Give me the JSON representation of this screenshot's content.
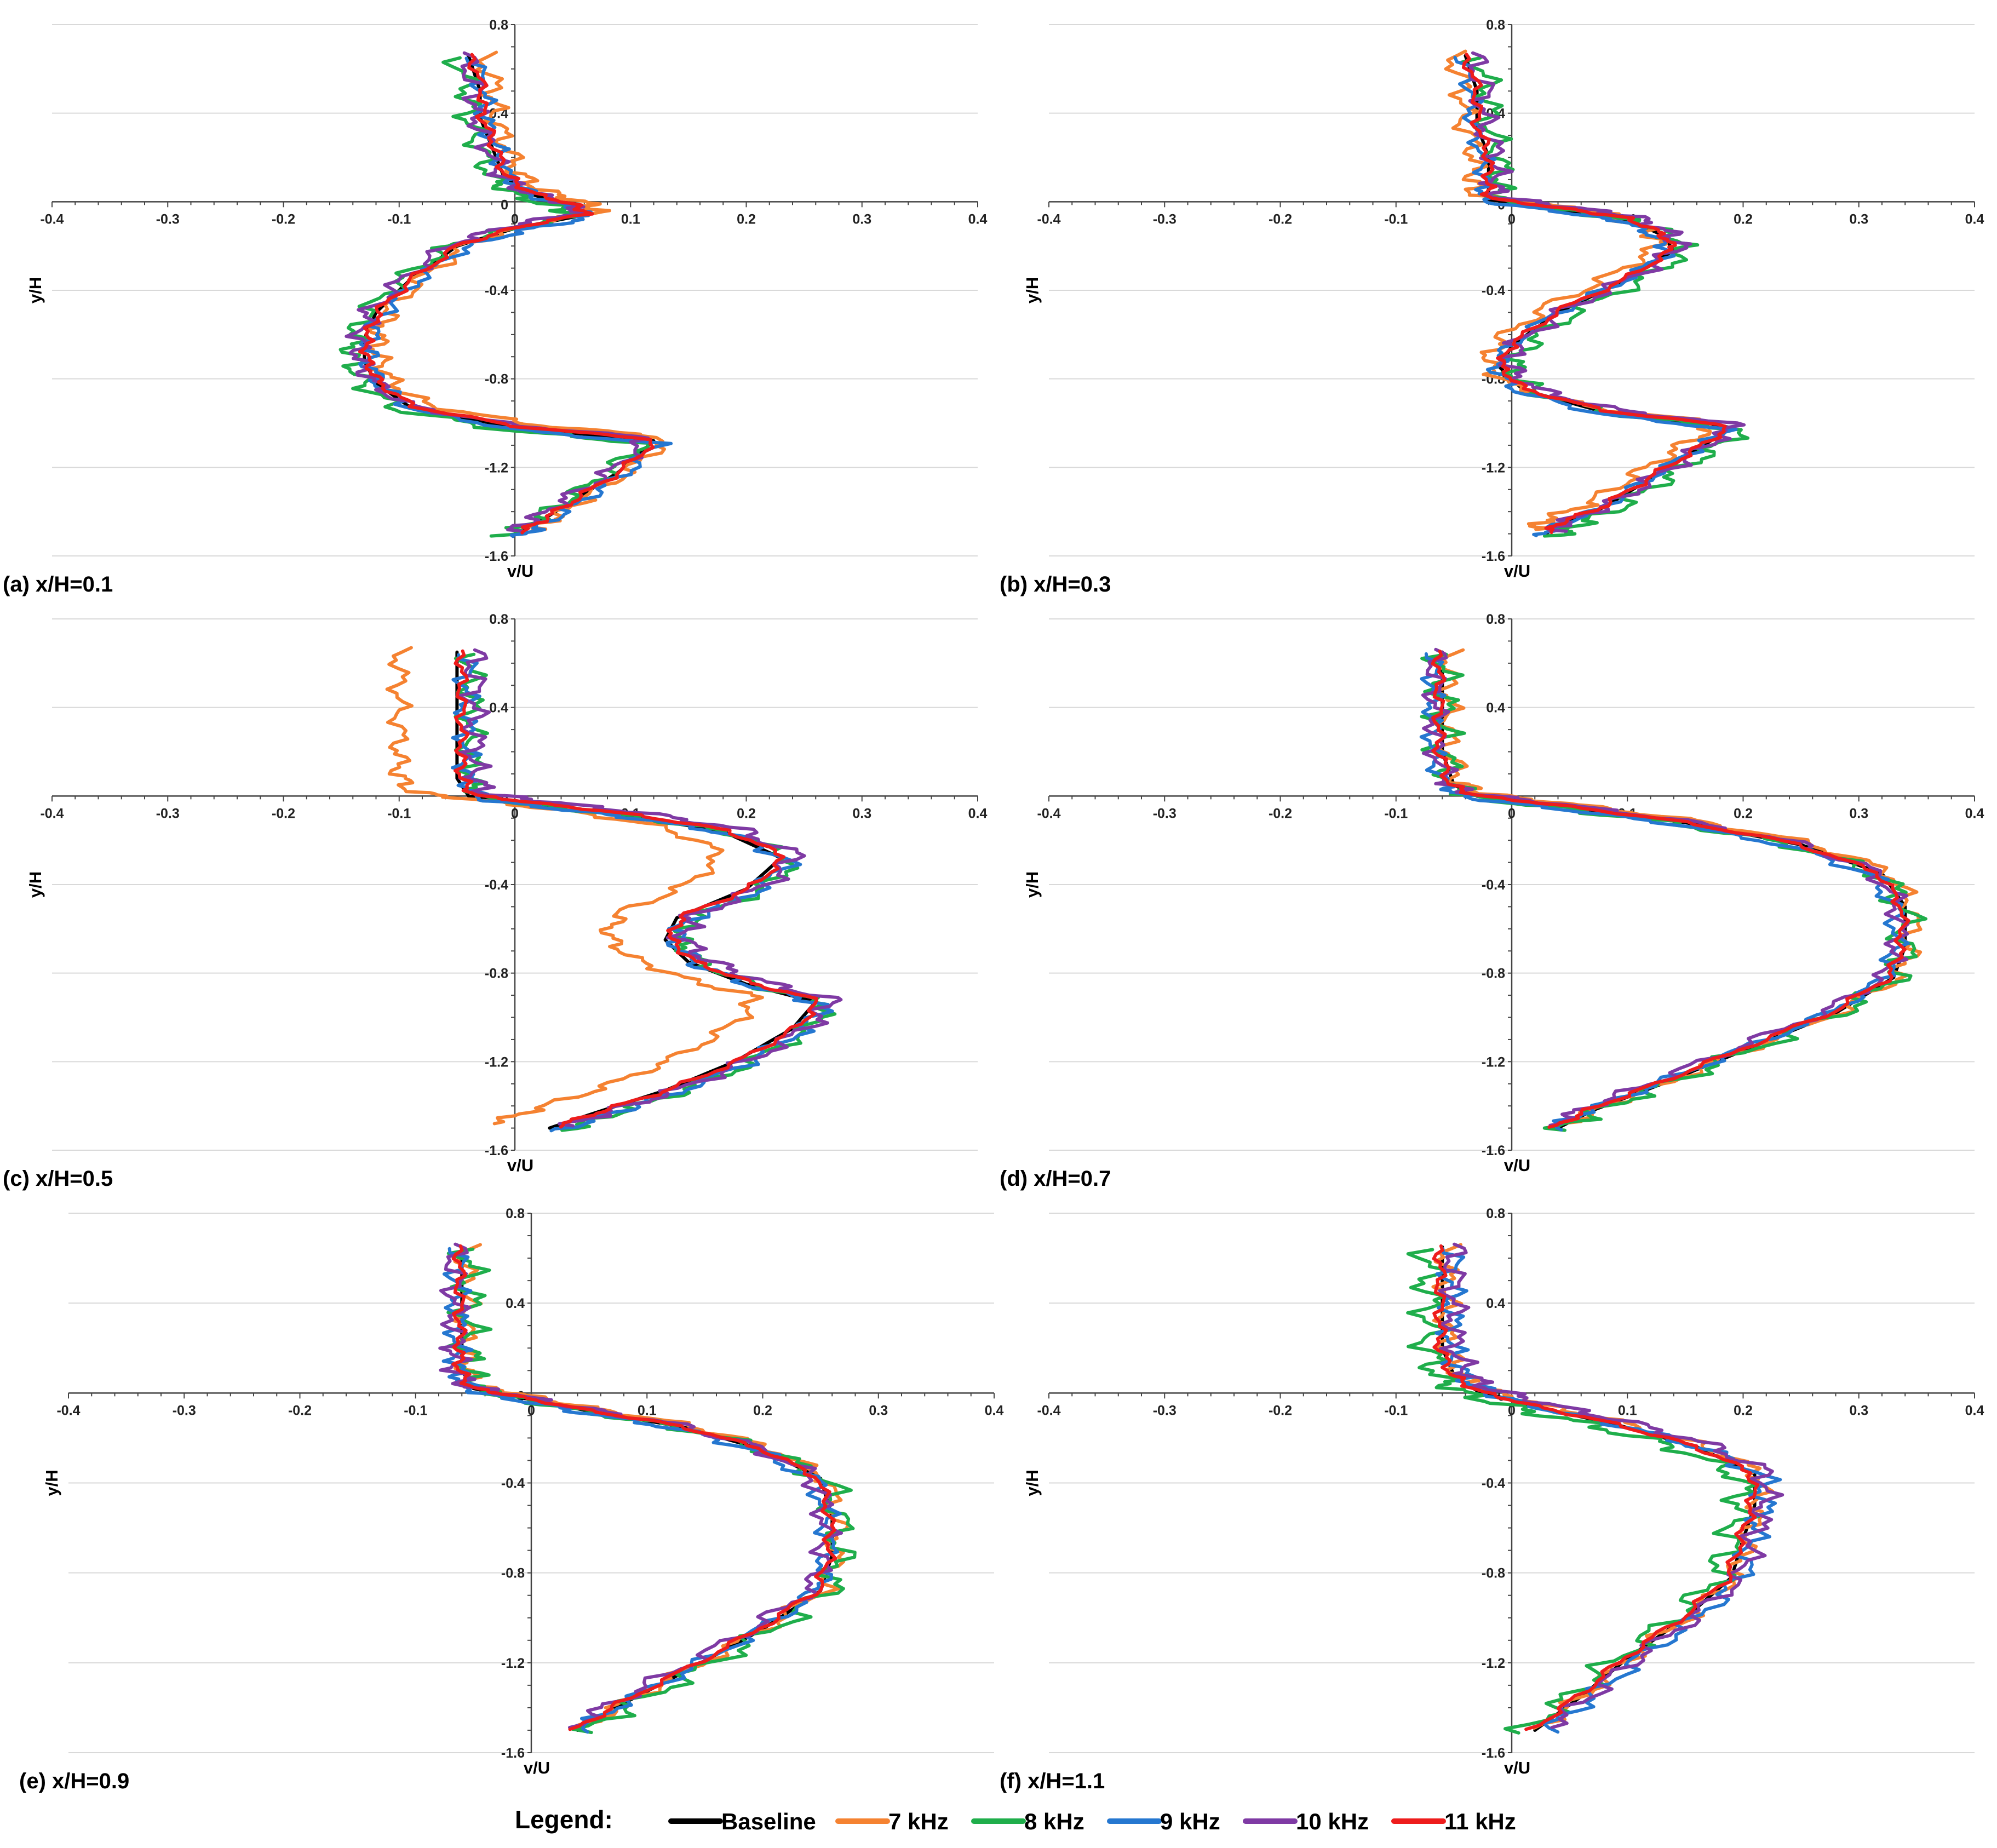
{
  "legend": {
    "title": "Legend:",
    "entries": [
      {
        "label": "Baseline",
        "color": "#000000"
      },
      {
        "label": "7 kHz",
        "color": "#f58231"
      },
      {
        "label": "8 kHz",
        "color": "#1fae4b"
      },
      {
        "label": "9 kHz",
        "color": "#2577d0"
      },
      {
        "label": "10 kHz",
        "color": "#7f3aa4"
      },
      {
        "label": "11 kHz",
        "color": "#ee1c1c"
      }
    ]
  },
  "chart_data": [
    {
      "panel_label": "(a) x/H=0.1",
      "type": "line",
      "xlabel": "v/U",
      "ylabel": "y/H",
      "xlim": [
        -0.4,
        0.4
      ],
      "ylim": [
        -1.6,
        0.8
      ],
      "xticks": [
        "-0.4",
        "-0.3",
        "-0.2",
        "-0.1",
        "0",
        "0.1",
        "0.2",
        "0.3",
        "0.4"
      ],
      "yticks": [
        "0.8",
        "0.4",
        "0",
        "-0.4",
        "-0.8",
        "-1.2",
        "-1.6"
      ],
      "grid": true,
      "profile": [
        [
          -0.04,
          0.66
        ],
        [
          -0.03,
          0.5
        ],
        [
          -0.03,
          0.38
        ],
        [
          -0.02,
          0.25
        ],
        [
          -0.01,
          0.12
        ],
        [
          0.01,
          0.04
        ],
        [
          0.05,
          -0.02
        ],
        [
          0.06,
          -0.06
        ],
        [
          0.0,
          -0.12
        ],
        [
          -0.05,
          -0.2
        ],
        [
          -0.09,
          -0.35
        ],
        [
          -0.12,
          -0.5
        ],
        [
          -0.13,
          -0.62
        ],
        [
          -0.13,
          -0.72
        ],
        [
          -0.12,
          -0.82
        ],
        [
          -0.09,
          -0.93
        ],
        [
          0.0,
          -1.02
        ],
        [
          0.12,
          -1.08
        ],
        [
          0.09,
          -1.22
        ],
        [
          0.05,
          -1.35
        ],
        [
          0.02,
          -1.45
        ],
        [
          0.0,
          -1.5
        ]
      ],
      "series": [
        {
          "name": "Baseline",
          "dx": 0.0,
          "dy": 0.0,
          "amp": 0.0
        },
        {
          "name": "7 kHz",
          "dx": 0.012,
          "dy": 0.015,
          "amp": 0.008
        },
        {
          "name": "8 kHz",
          "dx": -0.01,
          "dy": -0.01,
          "amp": 0.009
        },
        {
          "name": "9 kHz",
          "dx": 0.004,
          "dy": -0.012,
          "amp": 0.007
        },
        {
          "name": "10 kHz",
          "dx": -0.004,
          "dy": 0.012,
          "amp": 0.008
        },
        {
          "name": "11 kHz",
          "dx": 0.002,
          "dy": 0.005,
          "amp": 0.004
        }
      ]
    },
    {
      "panel_label": "(b) x/H=0.3",
      "type": "line",
      "xlabel": "v/U",
      "ylabel": "y/H",
      "xlim": [
        -0.4,
        0.4
      ],
      "ylim": [
        -1.6,
        0.8
      ],
      "xticks": [
        "-0.4",
        "-0.3",
        "-0.2",
        "-0.1",
        "0",
        "0.1",
        "0.2",
        "0.3",
        "0.4"
      ],
      "yticks": [
        "0.8",
        "0.4",
        "0",
        "-0.4",
        "-0.8",
        "-1.2",
        "-1.6"
      ],
      "grid": true,
      "profile": [
        [
          -0.04,
          0.66
        ],
        [
          -0.03,
          0.5
        ],
        [
          -0.03,
          0.35
        ],
        [
          -0.02,
          0.2
        ],
        [
          -0.02,
          0.08
        ],
        [
          -0.02,
          0.01
        ],
        [
          0.05,
          -0.04
        ],
        [
          0.1,
          -0.08
        ],
        [
          0.13,
          -0.15
        ],
        [
          0.14,
          -0.22
        ],
        [
          0.1,
          -0.35
        ],
        [
          0.04,
          -0.5
        ],
        [
          0.0,
          -0.65
        ],
        [
          -0.01,
          -0.75
        ],
        [
          0.01,
          -0.85
        ],
        [
          0.08,
          -0.95
        ],
        [
          0.19,
          -1.02
        ],
        [
          0.16,
          -1.12
        ],
        [
          0.12,
          -1.25
        ],
        [
          0.08,
          -1.38
        ],
        [
          0.04,
          -1.46
        ],
        [
          0.03,
          -1.5
        ]
      ],
      "series": [
        {
          "name": "Baseline",
          "dx": 0.0,
          "dy": 0.0,
          "amp": 0.0
        },
        {
          "name": "7 kHz",
          "dx": -0.012,
          "dy": 0.02,
          "amp": 0.008
        },
        {
          "name": "8 kHz",
          "dx": 0.01,
          "dy": -0.01,
          "amp": 0.01
        },
        {
          "name": "9 kHz",
          "dx": -0.004,
          "dy": -0.008,
          "amp": 0.006
        },
        {
          "name": "10 kHz",
          "dx": 0.006,
          "dy": 0.012,
          "amp": 0.009
        },
        {
          "name": "11 kHz",
          "dx": 0.0,
          "dy": 0.006,
          "amp": 0.004
        }
      ]
    },
    {
      "panel_label": "(c) x/H=0.5",
      "type": "line",
      "xlabel": "v/U",
      "ylabel": "y/H",
      "xlim": [
        -0.4,
        0.4
      ],
      "ylim": [
        -1.6,
        0.8
      ],
      "xticks": [
        "-0.4",
        "-0.3",
        "-0.2",
        "-0.1",
        "0",
        "0.1",
        "0.2",
        "0.3",
        "0.4"
      ],
      "yticks": [
        "0.8",
        "0.4",
        "0",
        "-0.4",
        "-0.8",
        "-1.2",
        "-1.6"
      ],
      "grid": true,
      "profile": [
        [
          -0.05,
          0.65
        ],
        [
          -0.05,
          0.5
        ],
        [
          -0.05,
          0.35
        ],
        [
          -0.05,
          0.2
        ],
        [
          -0.05,
          0.08
        ],
        [
          -0.04,
          0.0
        ],
        [
          0.02,
          -0.04
        ],
        [
          0.1,
          -0.09
        ],
        [
          0.18,
          -0.16
        ],
        [
          0.23,
          -0.28
        ],
        [
          0.2,
          -0.42
        ],
        [
          0.14,
          -0.55
        ],
        [
          0.13,
          -0.65
        ],
        [
          0.15,
          -0.75
        ],
        [
          0.2,
          -0.85
        ],
        [
          0.26,
          -0.93
        ],
        [
          0.24,
          -1.05
        ],
        [
          0.19,
          -1.2
        ],
        [
          0.13,
          -1.33
        ],
        [
          0.07,
          -1.43
        ],
        [
          0.03,
          -1.5
        ]
      ],
      "series": [
        {
          "name": "Baseline",
          "dx": 0.0,
          "dy": 0.0,
          "amp": 0.0
        },
        {
          "name": "7 kHz",
          "dx": -0.05,
          "dy": 0.02,
          "amp": 0.007
        },
        {
          "name": "8 kHz",
          "dx": 0.012,
          "dy": -0.01,
          "amp": 0.009
        },
        {
          "name": "9 kHz",
          "dx": 0.008,
          "dy": -0.012,
          "amp": 0.008
        },
        {
          "name": "10 kHz",
          "dx": 0.015,
          "dy": 0.01,
          "amp": 0.009
        },
        {
          "name": "11 kHz",
          "dx": 0.004,
          "dy": 0.005,
          "amp": 0.004
        }
      ]
    },
    {
      "panel_label": "(d) x/H=0.7",
      "type": "line",
      "xlabel": "v/U",
      "ylabel": "y/H",
      "xlim": [
        -0.4,
        0.4
      ],
      "ylim": [
        -1.6,
        0.8
      ],
      "xticks": [
        "-0.4",
        "-0.3",
        "-0.2",
        "-0.1",
        "0",
        "0.1",
        "0.2",
        "0.3",
        "0.4"
      ],
      "yticks": [
        "0.8",
        "0.4",
        "0",
        "-0.4",
        "-0.8",
        "-1.2",
        "-1.6"
      ],
      "grid": true,
      "profile": [
        [
          -0.06,
          0.65
        ],
        [
          -0.06,
          0.5
        ],
        [
          -0.06,
          0.35
        ],
        [
          -0.06,
          0.2
        ],
        [
          -0.05,
          0.05
        ],
        [
          -0.03,
          0.0
        ],
        [
          0.05,
          -0.05
        ],
        [
          0.15,
          -0.12
        ],
        [
          0.25,
          -0.22
        ],
        [
          0.32,
          -0.35
        ],
        [
          0.34,
          -0.5
        ],
        [
          0.34,
          -0.68
        ],
        [
          0.33,
          -0.82
        ],
        [
          0.28,
          -0.98
        ],
        [
          0.2,
          -1.15
        ],
        [
          0.13,
          -1.3
        ],
        [
          0.07,
          -1.42
        ],
        [
          0.04,
          -1.5
        ]
      ],
      "series": [
        {
          "name": "Baseline",
          "dx": 0.0,
          "dy": 0.0,
          "amp": 0.0
        },
        {
          "name": "7 kHz",
          "dx": 0.006,
          "dy": 0.01,
          "amp": 0.008
        },
        {
          "name": "8 kHz",
          "dx": 0.0,
          "dy": -0.01,
          "amp": 0.012
        },
        {
          "name": "9 kHz",
          "dx": -0.008,
          "dy": -0.008,
          "amp": 0.007
        },
        {
          "name": "10 kHz",
          "dx": -0.006,
          "dy": 0.012,
          "amp": 0.008
        },
        {
          "name": "11 kHz",
          "dx": -0.003,
          "dy": 0.004,
          "amp": 0.004
        }
      ]
    },
    {
      "panel_label": "(e) x/H=0.9",
      "type": "line",
      "xlabel": "v/U",
      "ylabel": "y/H",
      "xlim": [
        -0.4,
        0.4
      ],
      "ylim": [
        -1.6,
        0.8
      ],
      "xticks": [
        "-0.4",
        "-0.3",
        "-0.2",
        "-0.1",
        "0",
        "0.1",
        "0.2",
        "0.3",
        "0.4"
      ],
      "yticks": [
        "0.8",
        "0.4",
        "0",
        "-0.4",
        "-0.8",
        "-1.2",
        "-1.6"
      ],
      "grid": true,
      "profile": [
        [
          -0.06,
          0.65
        ],
        [
          -0.06,
          0.5
        ],
        [
          -0.06,
          0.35
        ],
        [
          -0.06,
          0.2
        ],
        [
          -0.06,
          0.1
        ],
        [
          -0.05,
          0.02
        ],
        [
          -0.01,
          -0.02
        ],
        [
          0.05,
          -0.08
        ],
        [
          0.13,
          -0.15
        ],
        [
          0.2,
          -0.25
        ],
        [
          0.25,
          -0.38
        ],
        [
          0.26,
          -0.55
        ],
        [
          0.26,
          -0.72
        ],
        [
          0.25,
          -0.88
        ],
        [
          0.2,
          -1.05
        ],
        [
          0.14,
          -1.22
        ],
        [
          0.08,
          -1.38
        ],
        [
          0.04,
          -1.5
        ]
      ],
      "series": [
        {
          "name": "Baseline",
          "dx": 0.0,
          "dy": 0.0,
          "amp": 0.0
        },
        {
          "name": "7 kHz",
          "dx": 0.004,
          "dy": 0.01,
          "amp": 0.008
        },
        {
          "name": "8 kHz",
          "dx": 0.006,
          "dy": -0.01,
          "amp": 0.012
        },
        {
          "name": "9 kHz",
          "dx": -0.004,
          "dy": -0.008,
          "amp": 0.008
        },
        {
          "name": "10 kHz",
          "dx": -0.006,
          "dy": 0.012,
          "amp": 0.009
        },
        {
          "name": "11 kHz",
          "dx": -0.002,
          "dy": 0.004,
          "amp": 0.004
        }
      ]
    },
    {
      "panel_label": "(f) x/H=1.1",
      "type": "line",
      "xlabel": "v/U",
      "ylabel": "y/H",
      "xlim": [
        -0.4,
        0.4
      ],
      "ylim": [
        -1.6,
        0.8
      ],
      "xticks": [
        "-0.4",
        "-0.3",
        "-0.2",
        "-0.1",
        "0",
        "0.1",
        "0.2",
        "0.3",
        "0.4"
      ],
      "yticks": [
        "0.8",
        "0.4",
        "0",
        "-0.4",
        "-0.8",
        "-1.2",
        "-1.6"
      ],
      "grid": true,
      "profile": [
        [
          -0.06,
          0.65
        ],
        [
          -0.06,
          0.5
        ],
        [
          -0.06,
          0.35
        ],
        [
          -0.06,
          0.2
        ],
        [
          -0.05,
          0.08
        ],
        [
          -0.03,
          0.01
        ],
        [
          0.02,
          -0.06
        ],
        [
          0.09,
          -0.14
        ],
        [
          0.16,
          -0.24
        ],
        [
          0.21,
          -0.36
        ],
        [
          0.21,
          -0.5
        ],
        [
          0.2,
          -0.65
        ],
        [
          0.19,
          -0.82
        ],
        [
          0.15,
          -1.0
        ],
        [
          0.1,
          -1.18
        ],
        [
          0.06,
          -1.35
        ],
        [
          0.02,
          -1.5
        ]
      ],
      "series": [
        {
          "name": "Baseline",
          "dx": 0.0,
          "dy": 0.0,
          "amp": 0.0
        },
        {
          "name": "7 kHz",
          "dx": 0.004,
          "dy": 0.01,
          "amp": 0.008
        },
        {
          "name": "8 kHz",
          "dx": -0.012,
          "dy": -0.012,
          "amp": 0.012
        },
        {
          "name": "9 kHz",
          "dx": 0.008,
          "dy": -0.008,
          "amp": 0.009
        },
        {
          "name": "10 kHz",
          "dx": 0.01,
          "dy": 0.012,
          "amp": 0.009
        },
        {
          "name": "11 kHz",
          "dx": -0.002,
          "dy": 0.004,
          "amp": 0.004
        }
      ]
    }
  ]
}
